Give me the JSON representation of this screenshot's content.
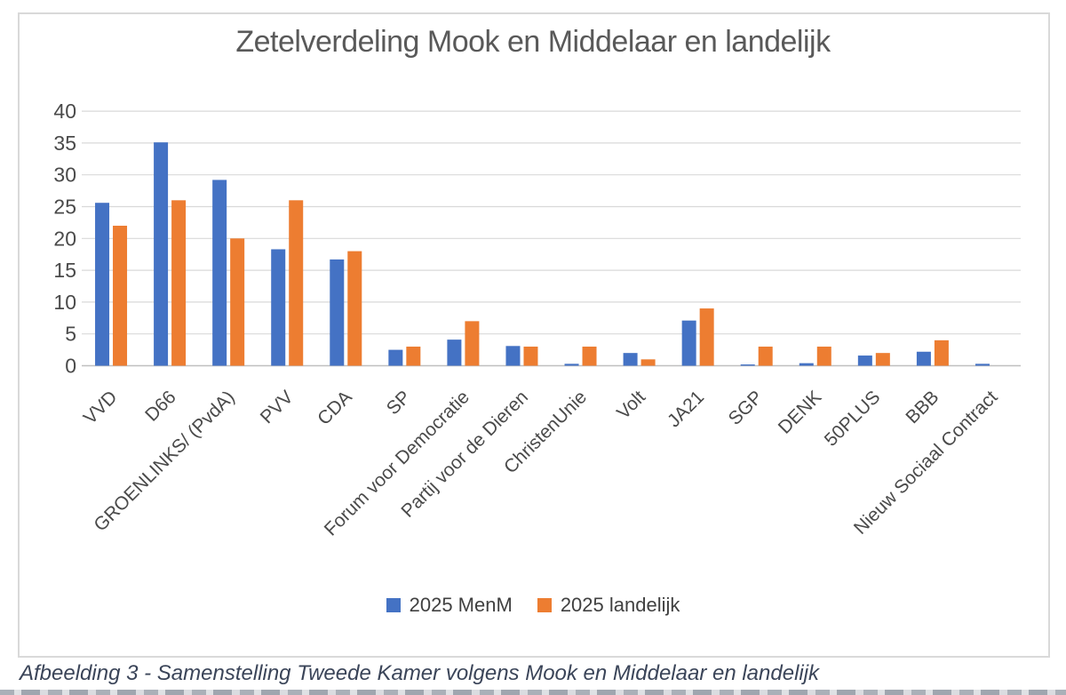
{
  "chart_data": {
    "type": "bar",
    "title": "Zetelverdeling Mook en Middelaar en landelijk",
    "categories": [
      "VVD",
      "D66",
      "GROENLINKS/ (PvdA)",
      "PVV",
      "CDA",
      "SP",
      "Forum voor Democratie",
      "Partij voor de Dieren",
      "ChristenUnie",
      "Volt",
      "JA21",
      "SGP",
      "DENK",
      "50PLUS",
      "BBB",
      "Nieuw Sociaal Contract"
    ],
    "series": [
      {
        "name": "2025 MenM",
        "color": "#4472C4",
        "values": [
          25.6,
          35.1,
          29.2,
          18.3,
          16.7,
          2.5,
          4.1,
          3.1,
          0.3,
          2.0,
          7.1,
          0.2,
          0.4,
          1.6,
          2.2,
          0.3
        ]
      },
      {
        "name": "2025 landelijk",
        "color": "#ED7D31",
        "values": [
          22,
          26,
          20,
          26,
          18,
          3,
          7,
          3,
          3,
          1,
          9,
          3,
          3,
          2,
          4,
          0
        ]
      }
    ],
    "xlabel": "",
    "ylabel": "",
    "ylim": [
      0,
      40
    ],
    "yticks": [
      0,
      5,
      10,
      15,
      20,
      25,
      30,
      35,
      40
    ],
    "grid": true,
    "legend_position": "bottom"
  },
  "caption": "Afbeelding 3 - Samenstelling Tweede Kamer volgens Mook en Middelaar en landelijk",
  "colors": {
    "grid_line": "#d9d9d9",
    "axis_line": "#bfbfbf",
    "tick_text": "#4a4a4a",
    "title_text": "#595959",
    "caption_text": "#3b4559"
  }
}
